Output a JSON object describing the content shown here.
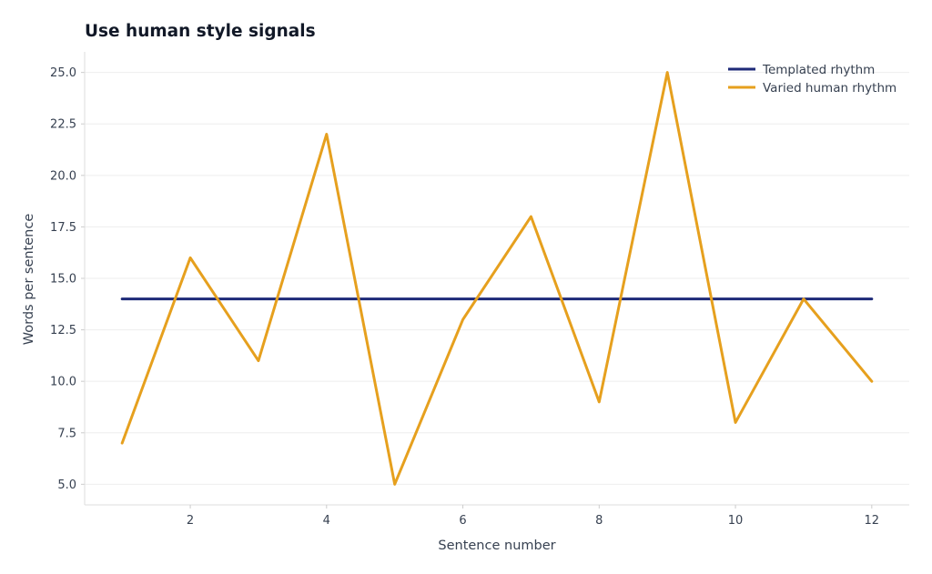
{
  "chart_data": {
    "type": "line",
    "title": "Use human style signals",
    "xlabel": "Sentence number",
    "ylabel": "Words per sentence",
    "x": [
      1,
      2,
      3,
      4,
      5,
      6,
      7,
      8,
      9,
      10,
      11,
      12
    ],
    "series": [
      {
        "name": "Templated rhythm",
        "color": "#1e2a78",
        "values": [
          14,
          14,
          14,
          14,
          14,
          14,
          14,
          14,
          14,
          14,
          14,
          14
        ]
      },
      {
        "name": "Varied human rhythm",
        "color": "#e6a01e",
        "values": [
          7,
          16,
          11,
          22,
          5,
          13,
          18,
          9,
          25,
          8,
          14,
          10
        ]
      }
    ],
    "xlim": [
      0.45,
      12.55
    ],
    "ylim": [
      4.0,
      26.0
    ],
    "xticks": [
      2,
      4,
      6,
      8,
      10,
      12
    ],
    "xtick_labels": [
      "2",
      "4",
      "6",
      "8",
      "10",
      "12"
    ],
    "yticks": [
      5.0,
      7.5,
      10.0,
      12.5,
      15.0,
      17.5,
      20.0,
      22.5,
      25.0
    ],
    "ytick_labels": [
      "5.0",
      "7.5",
      "10.0",
      "12.5",
      "15.0",
      "17.5",
      "20.0",
      "22.5",
      "25.0"
    ],
    "grid": true,
    "legend_position": "top-right"
  }
}
